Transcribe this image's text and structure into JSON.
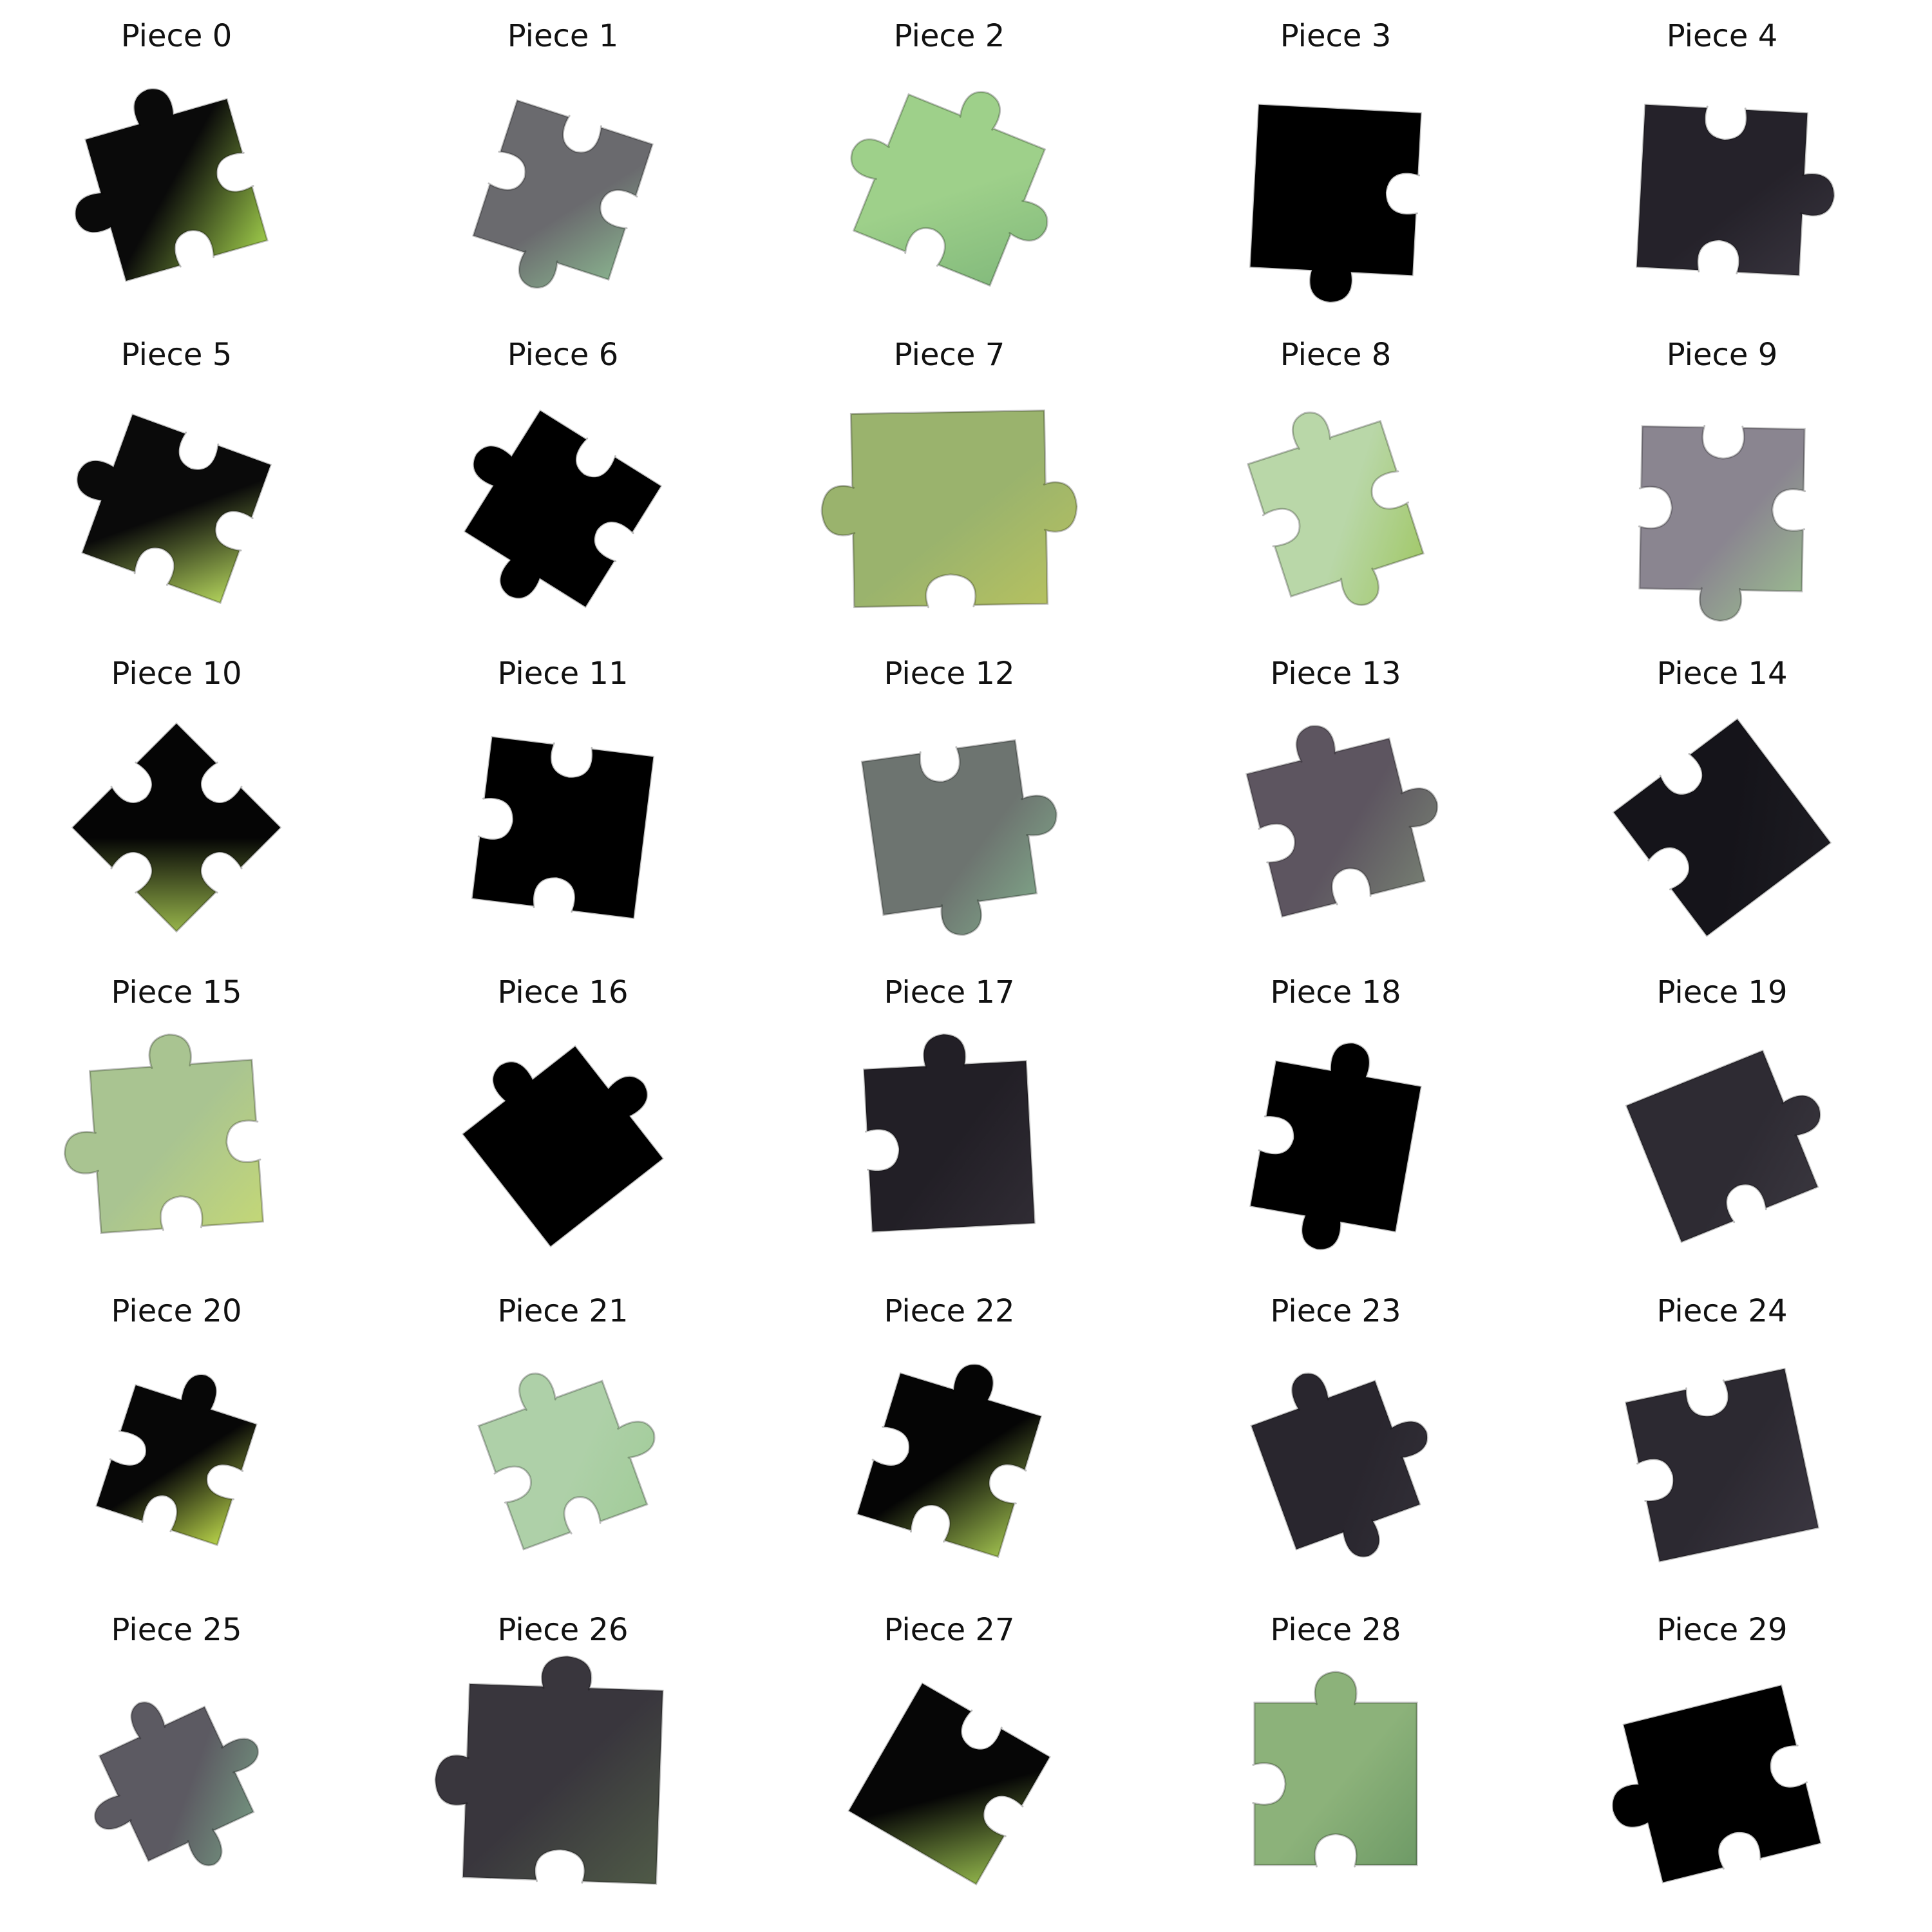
{
  "pieces": [
    {
      "label": "Piece 0",
      "fill": "#0a0a0a",
      "accent": "#9ecb4a",
      "rot": -16,
      "tabs": [
        1,
        -1,
        -1,
        1
      ],
      "scale": 0.95
    },
    {
      "label": "Piece 1",
      "fill": "#6a6a6e",
      "accent": "#8fbf94",
      "rot": 18,
      "tabs": [
        -1,
        -1,
        1,
        -1
      ],
      "scale": 0.92
    },
    {
      "label": "Piece 2",
      "fill": "#9ed08a",
      "accent": "#7fb77a",
      "rot": 22,
      "tabs": [
        1,
        1,
        -1,
        1
      ],
      "scale": 0.95
    },
    {
      "label": "Piece 3",
      "fill": "#000000",
      "accent": "#000000",
      "rot": 3,
      "tabs": [
        0,
        -1,
        1,
        0
      ],
      "scale": 1.05
    },
    {
      "label": "Piece 4",
      "fill": "#25222a",
      "accent": "#3a3640",
      "rot": 3,
      "tabs": [
        -1,
        1,
        -1,
        0
      ],
      "scale": 1.05
    },
    {
      "label": "Piece 5",
      "fill": "#0a0a0a",
      "accent": "#b3d45c",
      "rot": 20,
      "tabs": [
        -1,
        -1,
        -1,
        1
      ],
      "scale": 0.95
    },
    {
      "label": "Piece 6",
      "fill": "#000000",
      "accent": "#000000",
      "rot": 32,
      "tabs": [
        -1,
        -1,
        1,
        1
      ],
      "scale": 0.92
    },
    {
      "label": "Piece 7",
      "fill": "#9ab36d",
      "accent": "#b9c35e",
      "rot": -1,
      "tabs": [
        0,
        1,
        -1,
        1
      ],
      "scale": 1.25
    },
    {
      "label": "Piece 8",
      "fill": "#b9d7a8",
      "accent": "#9ec65f",
      "rot": -18,
      "tabs": [
        1,
        -1,
        1,
        -1
      ],
      "scale": 0.9
    },
    {
      "label": "Piece 9",
      "fill": "#8a8590",
      "accent": "#9dc390",
      "rot": 1,
      "tabs": [
        -1,
        -1,
        1,
        -1
      ],
      "scale": 1.05
    },
    {
      "label": "Piece 10",
      "fill": "#050505",
      "accent": "#9ab84c",
      "rot": 45,
      "tabs": [
        -1,
        -1,
        -1,
        -1
      ],
      "scale": 0.95
    },
    {
      "label": "Piece 11",
      "fill": "#000000",
      "accent": "#000000",
      "rot": 7,
      "tabs": [
        -1,
        0,
        -1,
        -1
      ],
      "scale": 1.05
    },
    {
      "label": "Piece 12",
      "fill": "#6d7470",
      "accent": "#86b791",
      "rot": -8,
      "tabs": [
        -1,
        1,
        1,
        0
      ],
      "scale": 1.0
    },
    {
      "label": "Piece 13",
      "fill": "#5d5560",
      "accent": "#7a8575",
      "rot": -14,
      "tabs": [
        1,
        1,
        -1,
        -1
      ],
      "scale": 0.95
    },
    {
      "label": "Piece 14",
      "fill": "#15141a",
      "accent": "#1d1c22",
      "rot": -37,
      "tabs": [
        -1,
        0,
        0,
        -1
      ],
      "scale": 1.0
    },
    {
      "label": "Piece 15",
      "fill": "#a9c491",
      "accent": "#c3d777",
      "rot": -4,
      "tabs": [
        1,
        -1,
        -1,
        1
      ],
      "scale": 1.05
    },
    {
      "label": "Piece 16",
      "fill": "#000000",
      "accent": "#000000",
      "rot": -38,
      "tabs": [
        1,
        1,
        0,
        0
      ],
      "scale": 0.92
    },
    {
      "label": "Piece 17",
      "fill": "#221f26",
      "accent": "#302c34",
      "rot": -3,
      "tabs": [
        1,
        0,
        0,
        -1
      ],
      "scale": 1.05
    },
    {
      "label": "Piece 18",
      "fill": "#000000",
      "accent": "#000000",
      "rot": 10,
      "tabs": [
        1,
        0,
        1,
        -1
      ],
      "scale": 0.95
    },
    {
      "label": "Piece 19",
      "fill": "#2e2b33",
      "accent": "#3b3840",
      "rot": -22,
      "tabs": [
        0,
        1,
        -1,
        0
      ],
      "scale": 0.95
    },
    {
      "label": "Piece 20",
      "fill": "#070707",
      "accent": "#b9d44a",
      "rot": 18,
      "tabs": [
        1,
        -1,
        -1,
        -1
      ],
      "scale": 0.82
    },
    {
      "label": "Piece 21",
      "fill": "#aed0a8",
      "accent": "#9fcb96",
      "rot": -20,
      "tabs": [
        1,
        1,
        -1,
        -1
      ],
      "scale": 0.85
    },
    {
      "label": "Piece 22",
      "fill": "#050505",
      "accent": "#9fbf4e",
      "rot": 17,
      "tabs": [
        1,
        -1,
        -1,
        -1
      ],
      "scale": 0.95
    },
    {
      "label": "Piece 23",
      "fill": "#29262e",
      "accent": "#35323a",
      "rot": -20,
      "tabs": [
        1,
        1,
        1,
        0
      ],
      "scale": 0.85
    },
    {
      "label": "Piece 24",
      "fill": "#2c2931",
      "accent": "#3a3640",
      "rot": -12,
      "tabs": [
        -1,
        0,
        0,
        -1
      ],
      "scale": 1.05
    },
    {
      "label": "Piece 25",
      "fill": "#5c5a62",
      "accent": "#7fb08d",
      "rot": -25,
      "tabs": [
        1,
        1,
        1,
        1
      ],
      "scale": 0.75
    },
    {
      "label": "Piece 26",
      "fill": "#39363d",
      "accent": "#4f5a47",
      "rot": 2,
      "tabs": [
        1,
        0,
        -1,
        1
      ],
      "scale": 1.25
    },
    {
      "label": "Piece 27",
      "fill": "#060606",
      "accent": "#8fb24a",
      "rot": 30,
      "tabs": [
        -1,
        -1,
        0,
        0
      ],
      "scale": 0.95
    },
    {
      "label": "Piece 28",
      "fill": "#8cb27a",
      "accent": "#6e9a66",
      "rot": 0,
      "tabs": [
        1,
        0,
        -1,
        -1
      ],
      "scale": 1.05
    },
    {
      "label": "Piece 29",
      "fill": "#000000",
      "accent": "#000000",
      "rot": -14,
      "tabs": [
        0,
        -1,
        -1,
        1
      ],
      "scale": 1.05
    }
  ]
}
